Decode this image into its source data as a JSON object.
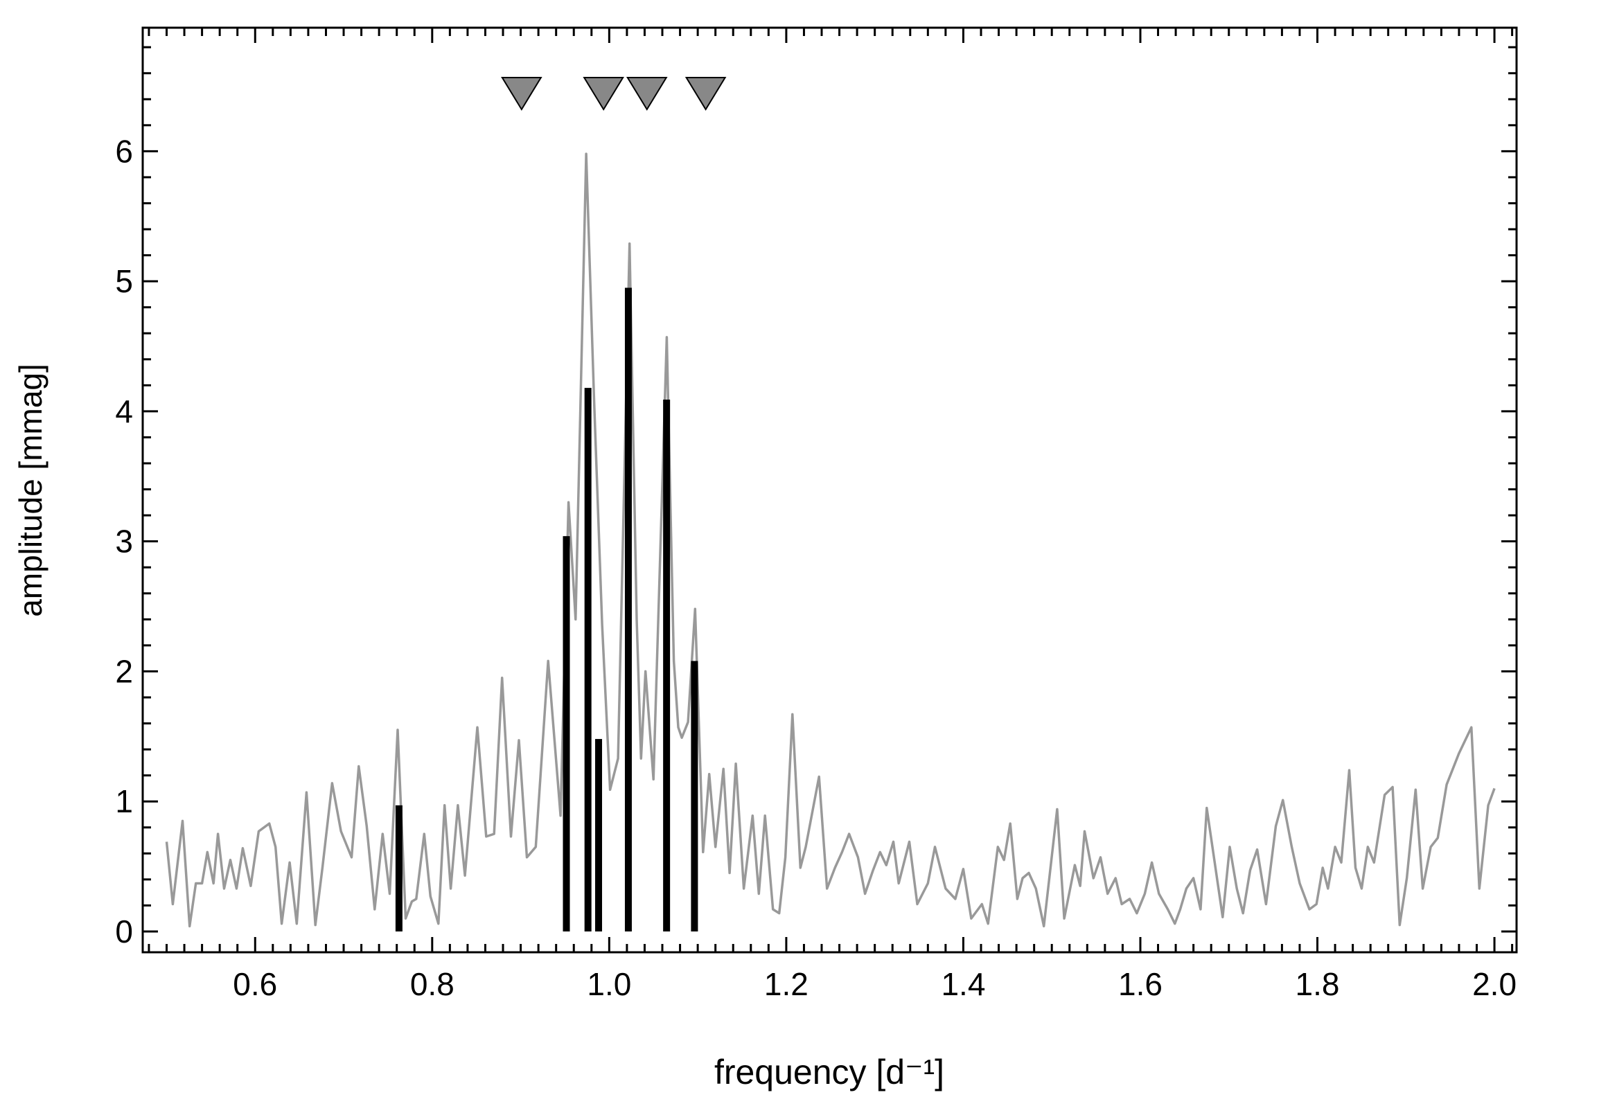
{
  "chart_data": {
    "type": "line",
    "xlabel": "frequency [d⁻¹]",
    "ylabel": "amplitude [mmag]",
    "xlim": [
      0.473,
      2.025
    ],
    "ylim": [
      -0.16,
      6.95
    ],
    "xticks": [
      0.6,
      0.8,
      {
        "value": 1,
        "label": "1.0"
      },
      1.2,
      1.4,
      1.6,
      1.8,
      {
        "value": 2,
        "label": "2.0"
      }
    ],
    "yticks": [
      0,
      1,
      2,
      3,
      4,
      5,
      6
    ],
    "x": [
      0.5,
      0.507,
      0.518,
      0.526,
      0.533,
      0.54,
      0.546,
      0.553,
      0.558,
      0.565,
      0.572,
      0.579,
      0.586,
      0.595,
      0.604,
      0.616,
      0.623,
      0.63,
      0.639,
      0.647,
      0.658,
      0.668,
      0.676,
      0.687,
      0.697,
      0.709,
      0.717,
      0.726,
      0.735,
      0.744,
      0.752,
      0.761,
      0.77,
      0.777,
      0.782,
      0.791,
      0.798,
      0.807,
      0.814,
      0.821,
      0.829,
      0.837,
      0.851,
      0.861,
      0.87,
      0.879,
      0.889,
      0.898,
      0.907,
      0.917,
      0.931,
      0.945,
      0.954,
      0.962,
      0.974,
      0.983,
      0.992,
      1.001,
      1.01,
      1.023,
      1.031,
      1.036,
      1.041,
      1.05,
      1.065,
      1.073,
      1.078,
      1.082,
      1.089,
      1.097,
      1.106,
      1.113,
      1.12,
      1.129,
      1.136,
      1.143,
      1.152,
      1.162,
      1.169,
      1.176,
      1.185,
      1.192,
      1.199,
      1.207,
      1.216,
      1.222,
      1.237,
      1.246,
      1.255,
      1.263,
      1.271,
      1.281,
      1.289,
      1.298,
      1.306,
      1.313,
      1.321,
      1.327,
      1.339,
      1.348,
      1.36,
      1.368,
      1.38,
      1.391,
      1.4,
      1.409,
      1.421,
      1.428,
      1.439,
      1.446,
      1.453,
      1.461,
      1.467,
      1.474,
      1.482,
      1.491,
      1.506,
      1.514,
      1.526,
      1.532,
      1.537,
      1.547,
      1.555,
      1.563,
      1.572,
      1.579,
      1.588,
      1.596,
      1.605,
      1.613,
      1.621,
      1.631,
      1.639,
      1.645,
      1.652,
      1.66,
      1.668,
      1.675,
      1.684,
      1.693,
      1.701,
      1.709,
      1.716,
      1.724,
      1.732,
      1.742,
      1.753,
      1.761,
      1.771,
      1.78,
      1.791,
      1.799,
      1.806,
      1.812,
      1.82,
      1.827,
      1.836,
      1.843,
      1.85,
      1.857,
      1.864,
      1.876,
      1.885,
      1.893,
      1.901,
      1.911,
      1.919,
      1.928,
      1.936,
      1.946,
      1.953,
      1.96,
      1.974,
      1.983,
      1.993,
      2.0
    ],
    "series": [
      {
        "color": "#999999",
        "values": [
          0.69,
          0.21,
          0.85,
          0.04,
          0.37,
          0.37,
          0.61,
          0.37,
          0.75,
          0.33,
          0.55,
          0.33,
          0.64,
          0.35,
          0.77,
          0.83,
          0.65,
          0.06,
          0.53,
          0.06,
          1.07,
          0.05,
          0.49,
          1.14,
          0.77,
          0.57,
          1.27,
          0.81,
          0.17,
          0.75,
          0.29,
          1.55,
          0.1,
          0.23,
          0.25,
          0.75,
          0.27,
          0.06,
          0.97,
          0.33,
          0.97,
          0.43,
          1.57,
          0.73,
          0.75,
          1.95,
          0.73,
          1.47,
          0.57,
          0.65,
          2.08,
          0.89,
          3.3,
          2.4,
          5.98,
          4.07,
          2.36,
          1.09,
          1.33,
          5.29,
          2.4,
          1.33,
          2.0,
          1.17,
          4.57,
          2.08,
          1.57,
          1.49,
          1.61,
          2.48,
          0.61,
          1.21,
          0.65,
          1.25,
          0.45,
          1.29,
          0.33,
          0.89,
          0.29,
          0.89,
          0.17,
          0.14,
          0.57,
          1.67,
          0.49,
          0.65,
          1.19,
          0.33,
          0.49,
          0.61,
          0.75,
          0.57,
          0.29,
          0.47,
          0.61,
          0.51,
          0.69,
          0.37,
          0.69,
          0.21,
          0.37,
          0.65,
          0.33,
          0.25,
          0.48,
          0.1,
          0.21,
          0.06,
          0.65,
          0.55,
          0.83,
          0.25,
          0.41,
          0.45,
          0.33,
          0.04,
          0.94,
          0.1,
          0.51,
          0.35,
          0.77,
          0.41,
          0.57,
          0.29,
          0.41,
          0.21,
          0.25,
          0.14,
          0.29,
          0.53,
          0.29,
          0.17,
          0.06,
          0.17,
          0.33,
          0.41,
          0.17,
          0.95,
          0.53,
          0.11,
          0.65,
          0.33,
          0.14,
          0.47,
          0.63,
          0.21,
          0.81,
          1.01,
          0.65,
          0.37,
          0.17,
          0.21,
          0.49,
          0.33,
          0.65,
          0.53,
          1.24,
          0.49,
          0.33,
          0.65,
          0.53,
          1.05,
          1.11,
          0.05,
          0.41,
          1.09,
          0.33,
          0.65,
          0.72,
          1.13,
          1.25,
          1.37,
          1.57,
          0.33,
          0.97,
          1.1
        ]
      }
    ],
    "bars": {
      "color": "#000000",
      "x": [
        0.7625,
        0.9516,
        0.976,
        0.988,
        1.0216,
        1.0648,
        1.0963
      ],
      "values": [
        0.97,
        3.04,
        4.18,
        1.48,
        4.95,
        4.09,
        2.08
      ]
    },
    "markers": {
      "color": "#888888",
      "x": [
        0.901,
        0.9936,
        1.0426,
        1.109
      ]
    }
  }
}
